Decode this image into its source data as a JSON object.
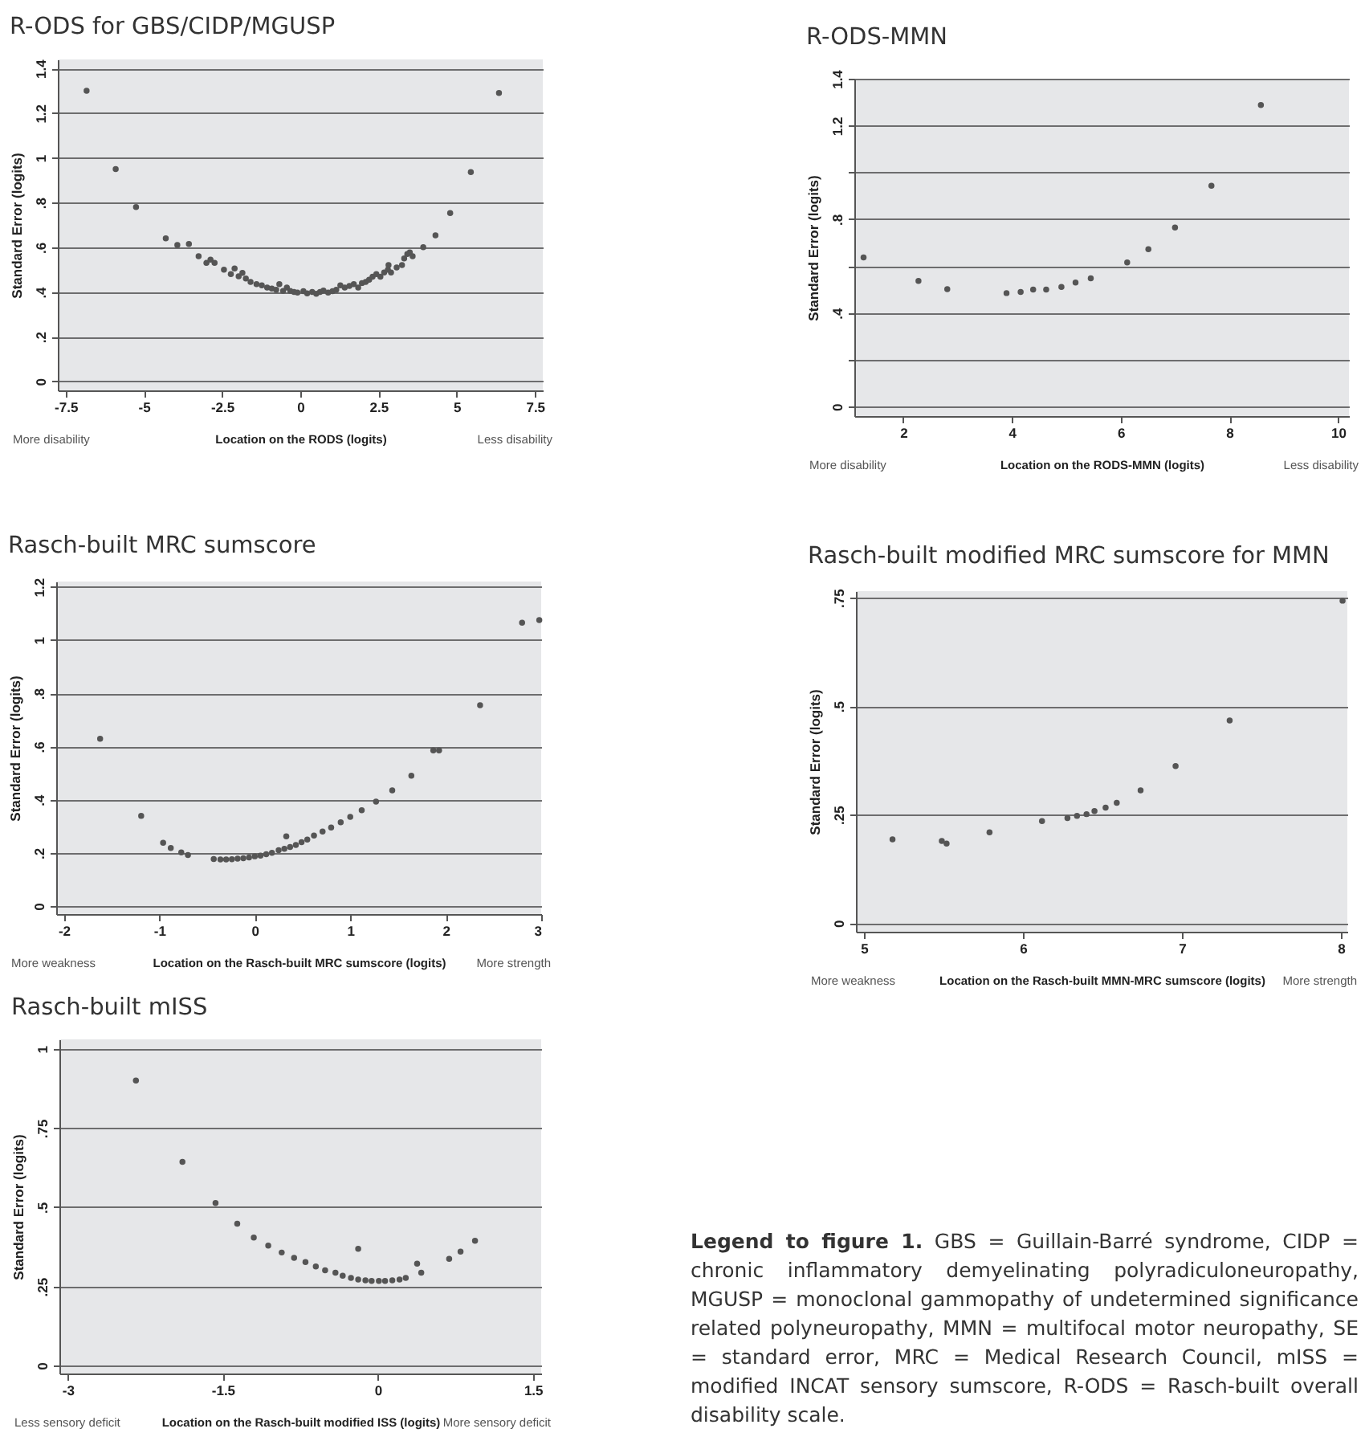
{
  "chart_data": [
    {
      "type": "scatter",
      "title": "R-ODS for GBS/CIDP/MGUSP",
      "xlabel": "Location on the RODS (logits)",
      "ylabel": "Standard Error (logits)",
      "annotations": [
        "More disability",
        "Less disability"
      ],
      "marker": "circle",
      "grid": "y",
      "xlim": [
        -7.75,
        7.75
      ],
      "ylim": [
        -0.04,
        1.44
      ],
      "xticks": [
        -7.5,
        -5,
        -2.5,
        0,
        2.5,
        5,
        7.5
      ],
      "yticks": [
        0,
        {
          "value": 0.2,
          "label": ".2"
        },
        {
          "value": 0.4,
          "label": ".4"
        },
        {
          "value": 0.6,
          "label": ".6"
        },
        {
          "value": 0.8,
          "label": ".8"
        },
        1,
        1.2,
        1.4
      ],
      "series": [
        {
          "color": "#555555",
          "x": [
            -6.83,
            -5.9,
            -5.25,
            -4.3,
            -3.93,
            -3.56,
            -3.25,
            -3.0,
            -2.87,
            -2.74,
            -2.44,
            -2.22,
            -2.1,
            -1.97,
            -1.85,
            -1.74,
            -1.59,
            -1.4,
            -1.23,
            -1.06,
            -0.91,
            -0.77,
            -0.67,
            -0.55,
            -0.43,
            -0.32,
            -0.2,
            -0.09,
            0.1,
            0.22,
            0.38,
            0.51,
            0.63,
            0.74,
            0.89,
            1.03,
            1.15,
            1.28,
            1.42,
            1.57,
            1.71,
            1.85,
            1.97,
            2.09,
            2.2,
            2.31,
            2.43,
            2.56,
            2.68,
            2.8,
            2.82,
            2.9,
            3.08,
            3.25,
            3.32,
            3.42,
            3.5,
            3.59,
            3.93,
            4.32,
            4.79,
            5.45,
            6.35
          ],
          "values": [
            1.3,
            0.95,
            0.78,
            0.64,
            0.61,
            0.615,
            0.56,
            0.53,
            0.545,
            0.53,
            0.5,
            0.48,
            0.505,
            0.47,
            0.485,
            0.46,
            0.445,
            0.435,
            0.43,
            0.42,
            0.415,
            0.41,
            0.435,
            0.405,
            0.42,
            0.405,
            0.4,
            0.397,
            0.404,
            0.394,
            0.4,
            0.392,
            0.4,
            0.406,
            0.397,
            0.404,
            0.41,
            0.43,
            0.42,
            0.427,
            0.435,
            0.42,
            0.44,
            0.445,
            0.455,
            0.468,
            0.48,
            0.468,
            0.487,
            0.5,
            0.52,
            0.487,
            0.51,
            0.52,
            0.55,
            0.57,
            0.577,
            0.56,
            0.6,
            0.653,
            0.753,
            0.936,
            1.29
          ]
        }
      ]
    },
    {
      "type": "scatter",
      "title": "R-ODS-MMN",
      "xlabel": "Location on the RODS-MMN (logits)",
      "ylabel": "Standard Error (logits)",
      "annotations": [
        "More disability",
        "Less disability"
      ],
      "marker": "circle",
      "grid": "y",
      "xlim": [
        1.1,
        10.2
      ],
      "ylim": [
        -0.04,
        1.4
      ],
      "xticks": [
        2,
        4,
        6,
        8,
        10
      ],
      "yticks": [
        0,
        {
          "value": 0.2,
          "label": null
        },
        {
          "value": 0.4,
          "label": ".4"
        },
        {
          "value": 0.6,
          "label": null
        },
        {
          "value": 0.8,
          "label": ".8"
        },
        {
          "value": 1,
          "label": null
        },
        1.2,
        1.4
      ],
      "series": [
        {
          "color": "#555555",
          "x": [
            1.27,
            2.28,
            2.81,
            3.9,
            4.16,
            4.39,
            4.63,
            4.91,
            5.17,
            5.45,
            6.12,
            6.51,
            7.0,
            7.67,
            8.58
          ],
          "values": [
            0.637,
            0.537,
            0.502,
            0.485,
            0.49,
            0.5,
            0.5,
            0.511,
            0.53,
            0.548,
            0.616,
            0.672,
            0.765,
            0.943,
            1.288
          ]
        }
      ]
    },
    {
      "type": "scatter",
      "title": "Rasch-built MRC sumscore",
      "xlabel": "Location on the Rasch-built MRC sumscore (logits)",
      "ylabel": "Standard Error (logits)",
      "annotations": [
        "More weakness",
        "More strength"
      ],
      "marker": "circle",
      "grid": "y",
      "xlim": [
        -2.08,
        3.0
      ],
      "ylim": [
        -0.03,
        1.22
      ],
      "xticks": [
        -2,
        -1,
        0,
        1,
        2,
        3
      ],
      "yticks": [
        0,
        {
          "value": 0.2,
          "label": ".2"
        },
        {
          "value": 0.4,
          "label": ".4"
        },
        {
          "value": 0.6,
          "label": ".6"
        },
        {
          "value": 0.8,
          "label": ".8"
        },
        1,
        1.2
      ],
      "series": [
        {
          "color": "#555555",
          "x": [
            -1.62,
            -1.19,
            -0.96,
            -0.88,
            -0.77,
            -0.7,
            -0.43,
            -0.36,
            -0.3,
            -0.24,
            -0.18,
            -0.12,
            -0.06,
            0.0,
            0.06,
            0.12,
            0.18,
            0.25,
            0.31,
            0.33,
            0.37,
            0.43,
            0.49,
            0.55,
            0.62,
            0.71,
            0.8,
            0.9,
            1.0,
            1.12,
            1.27,
            1.44,
            1.64,
            1.87,
            1.93,
            2.36,
            2.8,
            2.98
          ],
          "values": [
            0.629,
            0.339,
            0.238,
            0.218,
            0.202,
            0.192,
            0.177,
            0.175,
            0.175,
            0.176,
            0.178,
            0.18,
            0.183,
            0.187,
            0.19,
            0.195,
            0.2,
            0.21,
            0.215,
            0.262,
            0.222,
            0.23,
            0.24,
            0.25,
            0.265,
            0.28,
            0.295,
            0.315,
            0.335,
            0.36,
            0.393,
            0.435,
            0.49,
            0.585,
            0.585,
            0.755,
            1.065,
            1.075
          ]
        }
      ]
    },
    {
      "type": "scatter",
      "title": "Rasch-built modified MRC sumscore for MMN",
      "xlabel": "Location on the Rasch-built MMN-MRC sumscore (logits)",
      "ylabel": "Standard Error (logits)",
      "annotations": [
        "More weakness",
        "More strength"
      ],
      "marker": "circle",
      "grid": "y",
      "xlim": [
        4.95,
        8.04
      ],
      "ylim": [
        -0.02,
        0.765
      ],
      "xticks": [
        5,
        6,
        7,
        8
      ],
      "yticks": [
        0,
        {
          "value": 0.25,
          "label": ".25"
        },
        {
          "value": 0.5,
          "label": ".5"
        },
        {
          "value": 0.75,
          "label": ".75"
        }
      ],
      "series": [
        {
          "color": "#555555",
          "x": [
            5.18,
            5.49,
            5.52,
            5.79,
            6.12,
            6.28,
            6.34,
            6.4,
            6.45,
            6.52,
            6.59,
            6.74,
            6.96,
            7.3,
            8.01
          ],
          "values": [
            0.193,
            0.189,
            0.183,
            0.209,
            0.235,
            0.242,
            0.247,
            0.251,
            0.258,
            0.266,
            0.277,
            0.306,
            0.362,
            0.467,
            0.743
          ]
        }
      ]
    },
    {
      "type": "scatter",
      "title": "Rasch-built mISS",
      "xlabel": "Location on the Rasch-built modified ISS (logits)",
      "ylabel": "Standard Error (logits)",
      "annotations": [
        "Less sensory deficit",
        "More sensory deficit"
      ],
      "marker": "circle",
      "grid": "y",
      "xlim": [
        -3.08,
        1.58
      ],
      "ylim": [
        -0.025,
        1.03
      ],
      "xticks": [
        -3,
        -1.5,
        0,
        1.5
      ],
      "yticks": [
        0,
        {
          "value": 0.25,
          "label": ".25"
        },
        {
          "value": 0.5,
          "label": ".5"
        },
        {
          "value": 0.75,
          "label": ".75"
        },
        1
      ],
      "series": [
        {
          "color": "#555555",
          "x": [
            -2.34,
            -1.89,
            -1.57,
            -1.36,
            -1.2,
            -1.06,
            -0.93,
            -0.81,
            -0.7,
            -0.6,
            -0.51,
            -0.41,
            -0.34,
            -0.26,
            -0.19,
            -0.19,
            -0.12,
            -0.06,
            0.01,
            0.07,
            0.14,
            0.21,
            0.27,
            0.38,
            0.42,
            0.69,
            0.8,
            0.94
          ],
          "values": [
            0.9,
            0.643,
            0.513,
            0.448,
            0.404,
            0.379,
            0.357,
            0.34,
            0.327,
            0.313,
            0.301,
            0.293,
            0.284,
            0.277,
            0.369,
            0.272,
            0.269,
            0.267,
            0.267,
            0.267,
            0.269,
            0.272,
            0.277,
            0.322,
            0.293,
            0.337,
            0.36,
            0.394
          ]
        }
      ]
    },
    {
      "type": "other",
      "title": "Legend to figure 1.",
      "annotations": [
        "GBS = Guillain-Barré syndrome, CIDP = chronic inflammatory demyelinating polyradiculoneuropathy, MGUSP = monoclonal gammopathy of undetermined significance related polyneuropathy, MMN = multifocal motor neuropathy, SE = standard error, MRC = Medical Research Council, mISS = modified INCAT sensory sumscore, R-ODS = Rasch-built overall disability scale."
      ]
    }
  ]
}
